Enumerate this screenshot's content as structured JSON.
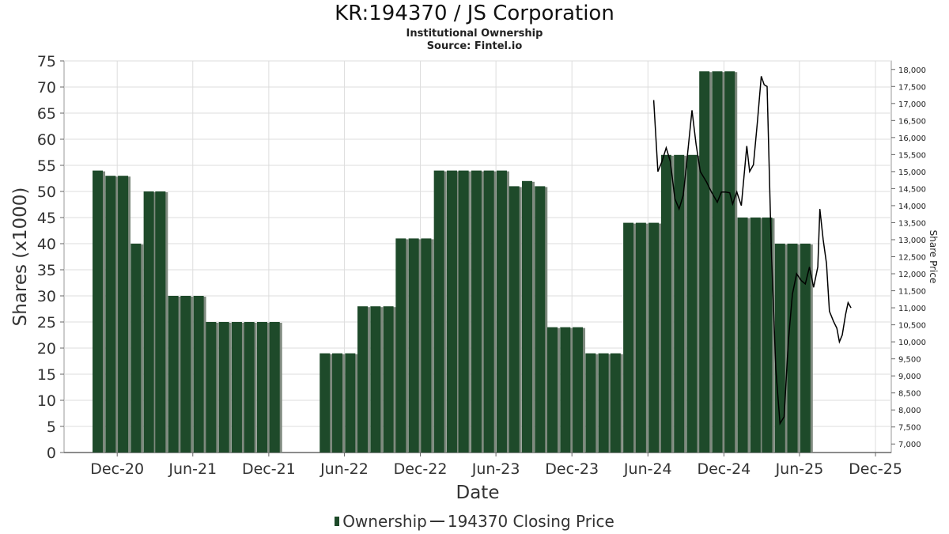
{
  "title": "KR:194370 / JS Corporation",
  "subtitle1": "Institutional Ownership",
  "subtitle2": "Source: Fintel.io",
  "legend": {
    "ownership": "Ownership",
    "price": "194370 Closing Price"
  },
  "colors": {
    "bar": "#1e4a2a",
    "bar_shadow": "#7f8a7f",
    "price_line": "#000000",
    "grid": "#dddddd"
  },
  "chart_data": {
    "type": "bar",
    "xlabel": "Date",
    "ylabel": "Shares (x1000)",
    "y2label": "Share Price",
    "ylim": [
      0,
      75
    ],
    "y2lim": [
      6750,
      18250
    ],
    "yticks": [
      0,
      5,
      10,
      15,
      20,
      25,
      30,
      35,
      40,
      45,
      50,
      55,
      60,
      65,
      70,
      75
    ],
    "y2ticks": [
      "7,000",
      "7,500",
      "8,000",
      "8,500",
      "9,000",
      "9,500",
      "10,000",
      "10,500",
      "11,000",
      "11,500",
      "12,000",
      "12,500",
      "13,000",
      "13,500",
      "14,000",
      "14,500",
      "15,000",
      "15,500",
      "16,000",
      "16,500",
      "17,000",
      "17,500",
      "18,000"
    ],
    "xticks": [
      {
        "label": "Dec-20",
        "date": "2020-12-01"
      },
      {
        "label": "Jun-21",
        "date": "2021-06-01"
      },
      {
        "label": "Dec-21",
        "date": "2021-12-01"
      },
      {
        "label": "Jun-22",
        "date": "2022-06-01"
      },
      {
        "label": "Dec-22",
        "date": "2022-12-01"
      },
      {
        "label": "Jun-23",
        "date": "2023-06-01"
      },
      {
        "label": "Dec-23",
        "date": "2023-12-01"
      },
      {
        "label": "Jun-24",
        "date": "2024-06-01"
      },
      {
        "label": "Dec-24",
        "date": "2024-12-01"
      },
      {
        "label": "Jun-25",
        "date": "2025-06-01"
      },
      {
        "label": "Dec-25",
        "date": "2025-12-01"
      }
    ],
    "grid": true,
    "legend_position": "bottom",
    "series": [
      {
        "name": "Ownership",
        "points": [
          {
            "date": "2020-10-15",
            "value": 54
          },
          {
            "date": "2020-11-15",
            "value": 53
          },
          {
            "date": "2020-12-15",
            "value": 53
          },
          {
            "date": "2021-01-15",
            "value": 40
          },
          {
            "date": "2021-02-15",
            "value": 50
          },
          {
            "date": "2021-03-15",
            "value": 50
          },
          {
            "date": "2021-04-15",
            "value": 30
          },
          {
            "date": "2021-05-15",
            "value": 30
          },
          {
            "date": "2021-06-15",
            "value": 30
          },
          {
            "date": "2021-07-15",
            "value": 25
          },
          {
            "date": "2021-08-15",
            "value": 25
          },
          {
            "date": "2021-09-15",
            "value": 25
          },
          {
            "date": "2021-10-15",
            "value": 25
          },
          {
            "date": "2021-11-15",
            "value": 25
          },
          {
            "date": "2021-12-15",
            "value": 25
          },
          {
            "date": "2022-04-15",
            "value": 19
          },
          {
            "date": "2022-05-15",
            "value": 19
          },
          {
            "date": "2022-06-15",
            "value": 19
          },
          {
            "date": "2022-07-15",
            "value": 28
          },
          {
            "date": "2022-08-15",
            "value": 28
          },
          {
            "date": "2022-09-15",
            "value": 28
          },
          {
            "date": "2022-10-15",
            "value": 41
          },
          {
            "date": "2022-11-15",
            "value": 41
          },
          {
            "date": "2022-12-15",
            "value": 41
          },
          {
            "date": "2023-01-15",
            "value": 54
          },
          {
            "date": "2023-02-15",
            "value": 54
          },
          {
            "date": "2023-03-15",
            "value": 54
          },
          {
            "date": "2023-04-15",
            "value": 54
          },
          {
            "date": "2023-05-15",
            "value": 54
          },
          {
            "date": "2023-06-15",
            "value": 54
          },
          {
            "date": "2023-07-15",
            "value": 51
          },
          {
            "date": "2023-08-15",
            "value": 52
          },
          {
            "date": "2023-09-15",
            "value": 51
          },
          {
            "date": "2023-10-15",
            "value": 24
          },
          {
            "date": "2023-11-15",
            "value": 24
          },
          {
            "date": "2023-12-15",
            "value": 24
          },
          {
            "date": "2024-01-15",
            "value": 19
          },
          {
            "date": "2024-02-15",
            "value": 19
          },
          {
            "date": "2024-03-15",
            "value": 19
          },
          {
            "date": "2024-04-15",
            "value": 44
          },
          {
            "date": "2024-05-15",
            "value": 44
          },
          {
            "date": "2024-06-15",
            "value": 44
          },
          {
            "date": "2024-07-15",
            "value": 57
          },
          {
            "date": "2024-08-15",
            "value": 57
          },
          {
            "date": "2024-09-15",
            "value": 57
          },
          {
            "date": "2024-10-15",
            "value": 73
          },
          {
            "date": "2024-11-15",
            "value": 73
          },
          {
            "date": "2024-12-15",
            "value": 73
          },
          {
            "date": "2025-01-15",
            "value": 45
          },
          {
            "date": "2025-02-15",
            "value": 45
          },
          {
            "date": "2025-03-15",
            "value": 45
          },
          {
            "date": "2025-04-15",
            "value": 40
          },
          {
            "date": "2025-05-15",
            "value": 40
          },
          {
            "date": "2025-06-15",
            "value": 40
          }
        ]
      },
      {
        "name": "194370 Closing Price",
        "points": [
          {
            "date": "2024-06-15",
            "value": 17100
          },
          {
            "date": "2024-06-25",
            "value": 15000
          },
          {
            "date": "2024-07-05",
            "value": 15300
          },
          {
            "date": "2024-07-15",
            "value": 15700
          },
          {
            "date": "2024-07-25",
            "value": 15300
          },
          {
            "date": "2024-08-05",
            "value": 14200
          },
          {
            "date": "2024-08-15",
            "value": 13900
          },
          {
            "date": "2024-08-25",
            "value": 14300
          },
          {
            "date": "2024-09-01",
            "value": 15100
          },
          {
            "date": "2024-09-15",
            "value": 16800
          },
          {
            "date": "2024-09-25",
            "value": 15800
          },
          {
            "date": "2024-10-05",
            "value": 15000
          },
          {
            "date": "2024-10-20",
            "value": 14700
          },
          {
            "date": "2024-11-01",
            "value": 14400
          },
          {
            "date": "2024-11-15",
            "value": 14100
          },
          {
            "date": "2024-11-25",
            "value": 14400
          },
          {
            "date": "2024-12-05",
            "value": 14400
          },
          {
            "date": "2024-12-15",
            "value": 14380
          },
          {
            "date": "2024-12-22",
            "value": 14050
          },
          {
            "date": "2025-01-01",
            "value": 14400
          },
          {
            "date": "2025-01-12",
            "value": 14000
          },
          {
            "date": "2025-01-25",
            "value": 15750
          },
          {
            "date": "2025-02-01",
            "value": 15000
          },
          {
            "date": "2025-02-10",
            "value": 15200
          },
          {
            "date": "2025-02-20",
            "value": 16500
          },
          {
            "date": "2025-03-01",
            "value": 17800
          },
          {
            "date": "2025-03-08",
            "value": 17550
          },
          {
            "date": "2025-03-15",
            "value": 17500
          },
          {
            "date": "2025-03-25",
            "value": 12800
          },
          {
            "date": "2025-04-05",
            "value": 9200
          },
          {
            "date": "2025-04-15",
            "value": 7600
          },
          {
            "date": "2025-04-25",
            "value": 7800
          },
          {
            "date": "2025-05-05",
            "value": 10000
          },
          {
            "date": "2025-05-15",
            "value": 11400
          },
          {
            "date": "2025-05-25",
            "value": 12000
          },
          {
            "date": "2025-06-05",
            "value": 11800
          },
          {
            "date": "2025-06-15",
            "value": 11700
          },
          {
            "date": "2025-06-25",
            "value": 12200
          },
          {
            "date": "2025-07-05",
            "value": 11600
          },
          {
            "date": "2025-07-15",
            "value": 12200
          },
          {
            "date": "2025-07-20",
            "value": 13900
          },
          {
            "date": "2025-07-28",
            "value": 13000
          },
          {
            "date": "2025-08-05",
            "value": 12300
          },
          {
            "date": "2025-08-12",
            "value": 10900
          },
          {
            "date": "2025-08-22",
            "value": 10600
          },
          {
            "date": "2025-08-30",
            "value": 10400
          },
          {
            "date": "2025-09-05",
            "value": 10000
          },
          {
            "date": "2025-09-12",
            "value": 10200
          },
          {
            "date": "2025-09-20",
            "value": 10800
          },
          {
            "date": "2025-09-26",
            "value": 11150
          },
          {
            "date": "2025-10-03",
            "value": 11000
          }
        ]
      }
    ]
  }
}
